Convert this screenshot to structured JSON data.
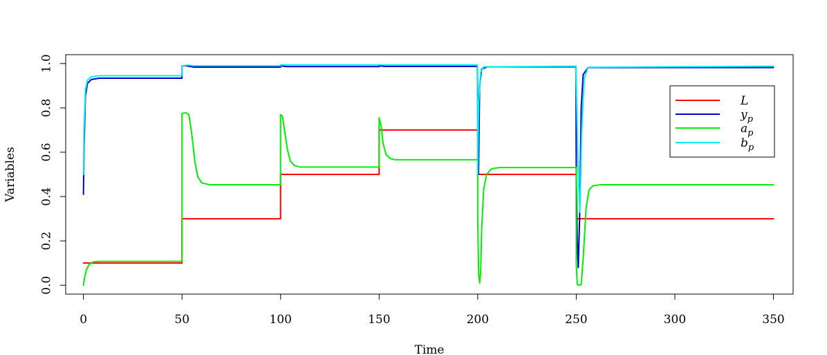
{
  "chart_data": {
    "type": "line",
    "title": "",
    "xlabel": "Time",
    "ylabel": "Variables",
    "xlim": [
      -9,
      360
    ],
    "ylim": [
      -0.04,
      1.04
    ],
    "xticks": [
      0,
      50,
      100,
      150,
      200,
      250,
      300,
      350
    ],
    "yticks": [
      0.0,
      0.2,
      0.4,
      0.6,
      0.8,
      1.0
    ],
    "xtick_labels": [
      "0",
      "50",
      "100",
      "150",
      "200",
      "250",
      "300",
      "350"
    ],
    "ytick_labels": [
      "0.0",
      "0.2",
      "0.4",
      "0.6",
      "0.8",
      "1.0"
    ],
    "grid": false,
    "legend": {
      "position": "top-right",
      "entries": [
        {
          "main": "L",
          "sub": ""
        },
        {
          "main": "y",
          "sub": "p"
        },
        {
          "main": "a",
          "sub": "p"
        },
        {
          "main": "b",
          "sub": "p"
        }
      ]
    },
    "series": [
      {
        "name": "L",
        "color": "#ff0000",
        "points": [
          [
            0,
            0.1
          ],
          [
            50,
            0.1
          ],
          [
            50,
            0.3
          ],
          [
            100,
            0.3
          ],
          [
            100,
            0.5
          ],
          [
            150,
            0.5
          ],
          [
            150,
            0.7
          ],
          [
            200,
            0.7
          ],
          [
            200,
            0.5
          ],
          [
            250,
            0.5
          ],
          [
            250,
            0.3
          ],
          [
            350,
            0.3
          ]
        ]
      },
      {
        "name": "y_p",
        "color": "#0000cd",
        "points": [
          [
            0,
            0.41
          ],
          [
            0.3,
            0.62
          ],
          [
            1,
            0.85
          ],
          [
            2,
            0.91
          ],
          [
            4,
            0.928
          ],
          [
            8,
            0.934
          ],
          [
            50,
            0.934
          ],
          [
            50,
            0.99
          ],
          [
            52,
            0.99
          ],
          [
            56,
            0.984
          ],
          [
            100,
            0.984
          ],
          [
            100,
            0.99
          ],
          [
            103,
            0.986
          ],
          [
            150,
            0.986
          ],
          [
            150,
            0.99
          ],
          [
            153,
            0.987
          ],
          [
            199.8,
            0.987
          ],
          [
            200,
            0.87
          ],
          [
            200.4,
            0.5
          ],
          [
            201,
            0.9
          ],
          [
            202,
            0.975
          ],
          [
            205,
            0.985
          ],
          [
            249.8,
            0.985
          ],
          [
            250,
            0.5
          ],
          [
            250.5,
            0.2
          ],
          [
            251,
            0.08
          ],
          [
            251.7,
            0.3
          ],
          [
            252.5,
            0.8
          ],
          [
            253.5,
            0.95
          ],
          [
            256,
            0.982
          ],
          [
            350,
            0.982
          ]
        ]
      },
      {
        "name": "a_p",
        "color": "#00ee00",
        "points": [
          [
            0,
            0.0
          ],
          [
            0.5,
            0.03
          ],
          [
            1.5,
            0.07
          ],
          [
            3,
            0.095
          ],
          [
            5,
            0.105
          ],
          [
            8,
            0.108
          ],
          [
            50,
            0.108
          ],
          [
            50,
            0.775
          ],
          [
            52,
            0.778
          ],
          [
            53.5,
            0.77
          ],
          [
            55,
            0.68
          ],
          [
            56.5,
            0.56
          ],
          [
            58,
            0.49
          ],
          [
            60,
            0.462
          ],
          [
            64,
            0.453
          ],
          [
            100,
            0.453
          ],
          [
            100,
            0.77
          ],
          [
            101,
            0.76
          ],
          [
            102,
            0.7
          ],
          [
            103.5,
            0.61
          ],
          [
            105,
            0.56
          ],
          [
            107,
            0.54
          ],
          [
            110,
            0.533
          ],
          [
            150,
            0.533
          ],
          [
            150,
            0.755
          ],
          [
            151,
            0.72
          ],
          [
            152,
            0.64
          ],
          [
            153.5,
            0.59
          ],
          [
            155.5,
            0.572
          ],
          [
            158,
            0.566
          ],
          [
            200,
            0.566
          ],
          [
            200,
            0.3
          ],
          [
            200.5,
            0.05
          ],
          [
            201,
            0.01
          ],
          [
            201.5,
            0.06
          ],
          [
            202,
            0.25
          ],
          [
            203,
            0.43
          ],
          [
            204.5,
            0.5
          ],
          [
            207,
            0.525
          ],
          [
            211,
            0.531
          ],
          [
            250,
            0.531
          ],
          [
            250,
            0.1
          ],
          [
            250.5,
            0.005
          ],
          [
            251,
            0.0
          ],
          [
            252.5,
            0.003
          ],
          [
            253.5,
            0.12
          ],
          [
            255,
            0.35
          ],
          [
            256.5,
            0.43
          ],
          [
            258.5,
            0.449
          ],
          [
            262,
            0.453
          ],
          [
            350,
            0.453
          ]
        ]
      },
      {
        "name": "b_p",
        "color": "#00eeee",
        "points": [
          [
            0,
            0.5
          ],
          [
            0.3,
            0.7
          ],
          [
            1,
            0.88
          ],
          [
            2,
            0.925
          ],
          [
            4,
            0.94
          ],
          [
            8,
            0.945
          ],
          [
            50,
            0.945
          ],
          [
            50,
            0.99
          ],
          [
            53,
            0.993
          ],
          [
            56,
            0.99
          ],
          [
            100,
            0.99
          ],
          [
            100,
            0.994
          ],
          [
            150,
            0.994
          ],
          [
            150,
            0.994
          ],
          [
            199.8,
            0.994
          ],
          [
            200,
            0.5
          ],
          [
            200.5,
            0.82
          ],
          [
            201.5,
            0.96
          ],
          [
            203,
            0.985
          ],
          [
            249.8,
            0.988
          ],
          [
            250,
            0.9
          ],
          [
            251,
            0.5
          ],
          [
            251.8,
            0.33
          ],
          [
            252.8,
            0.7
          ],
          [
            254,
            0.93
          ],
          [
            256,
            0.983
          ],
          [
            350,
            0.988
          ]
        ]
      }
    ]
  }
}
